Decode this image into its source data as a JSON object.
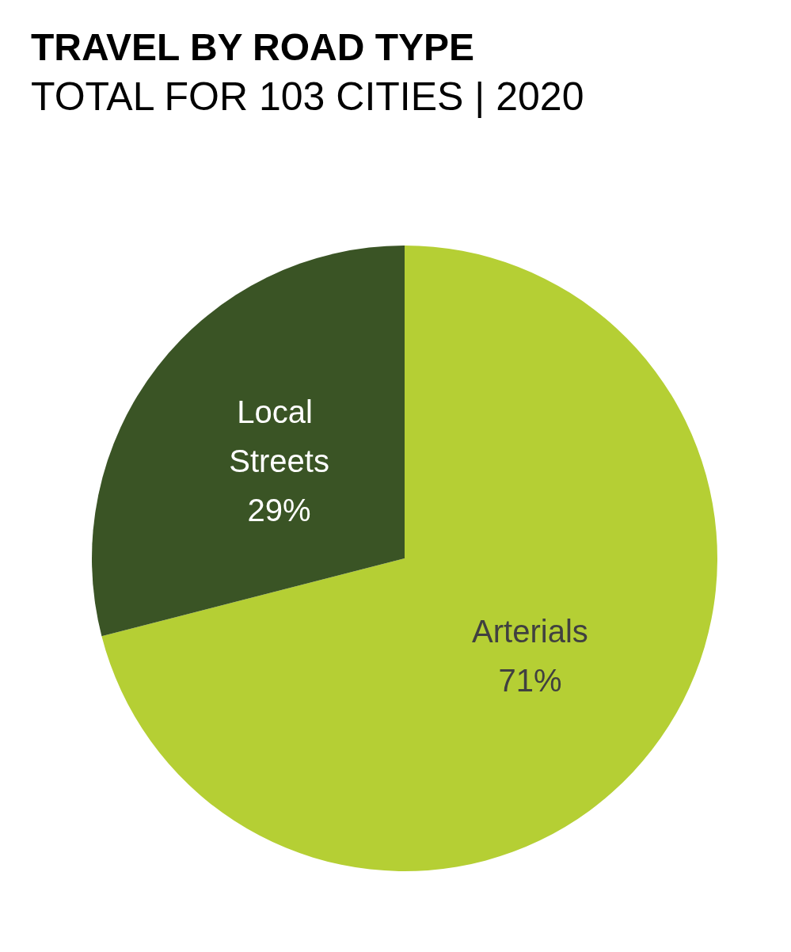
{
  "chart_data": {
    "type": "pie",
    "title": "TRAVEL BY ROAD TYPE",
    "subtitle": "TOTAL FOR 103 CITIES | 2020",
    "categories": [
      "Arterials",
      "Local Streets"
    ],
    "values": [
      71,
      29
    ],
    "colors": [
      "#b5cf34",
      "#3a5425"
    ],
    "value_labels": [
      "71%",
      "29%"
    ],
    "legend": false
  }
}
